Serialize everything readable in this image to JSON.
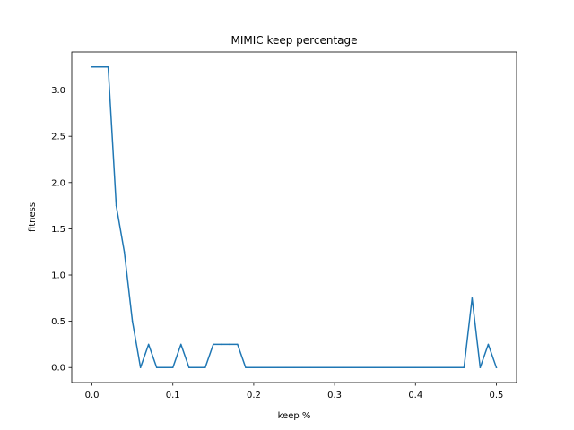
{
  "chart_data": {
    "type": "line",
    "title": "MIMIC keep percentage",
    "xlabel": "keep %",
    "ylabel": "fitness",
    "xlim": [
      -0.025,
      0.525
    ],
    "ylim": [
      -0.1625,
      3.4125
    ],
    "xticks": [
      0.0,
      0.1,
      0.2,
      0.3,
      0.4,
      0.5
    ],
    "xtick_labels": [
      "0.0",
      "0.1",
      "0.2",
      "0.3",
      "0.4",
      "0.5"
    ],
    "yticks": [
      0.0,
      0.5,
      1.0,
      1.5,
      2.0,
      2.5,
      3.0
    ],
    "ytick_labels": [
      "0.0",
      "0.5",
      "1.0",
      "1.5",
      "2.0",
      "2.5",
      "3.0"
    ],
    "grid": false,
    "series": [
      {
        "color": "#1f77b4",
        "x": [
          0.0,
          0.01,
          0.02,
          0.03,
          0.04,
          0.05,
          0.06,
          0.07,
          0.08,
          0.09,
          0.1,
          0.11,
          0.12,
          0.13,
          0.14,
          0.15,
          0.16,
          0.17,
          0.18,
          0.19,
          0.2,
          0.21,
          0.22,
          0.23,
          0.24,
          0.25,
          0.26,
          0.27,
          0.28,
          0.29,
          0.3,
          0.31,
          0.32,
          0.33,
          0.34,
          0.35,
          0.36,
          0.37,
          0.38,
          0.39,
          0.4,
          0.41,
          0.42,
          0.43,
          0.44,
          0.45,
          0.46,
          0.47,
          0.48,
          0.49,
          0.5
        ],
        "y": [
          3.25,
          3.25,
          3.25,
          1.75,
          1.25,
          0.5,
          0.0,
          0.25,
          0.0,
          0.0,
          0.0,
          0.25,
          0.0,
          0.0,
          0.0,
          0.25,
          0.25,
          0.25,
          0.25,
          0.0,
          0.0,
          0.0,
          0.0,
          0.0,
          0.0,
          0.0,
          0.0,
          0.0,
          0.0,
          0.0,
          0.0,
          0.0,
          0.0,
          0.0,
          0.0,
          0.0,
          0.0,
          0.0,
          0.0,
          0.0,
          0.0,
          0.0,
          0.0,
          0.0,
          0.0,
          0.0,
          0.0,
          0.75,
          0.0,
          0.25,
          0.0
        ]
      }
    ]
  }
}
